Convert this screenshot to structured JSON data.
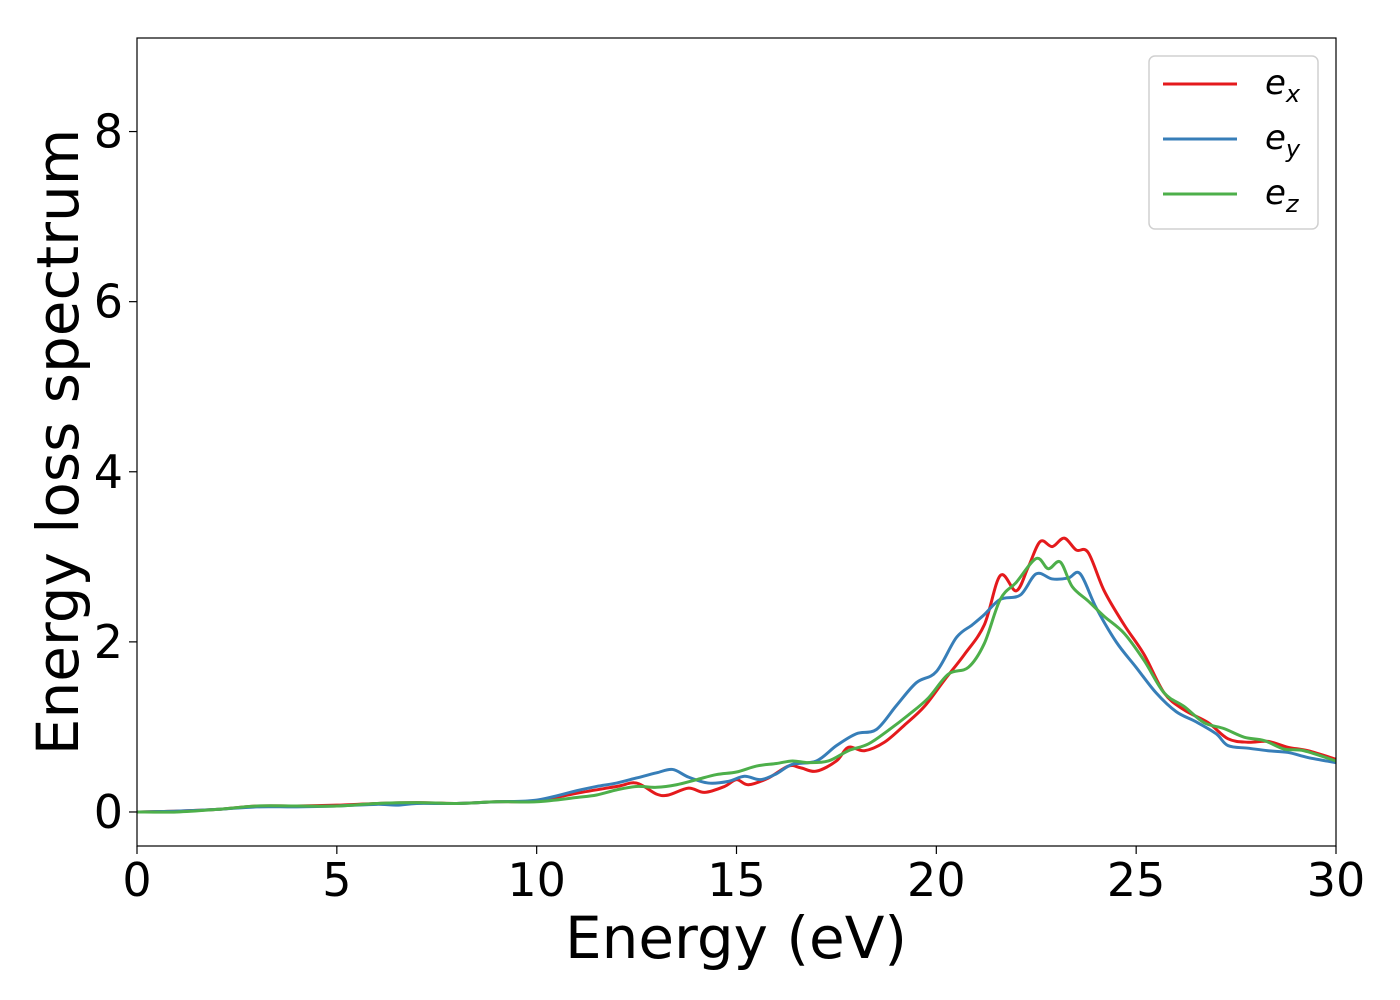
{
  "chart_data": {
    "type": "line",
    "title": "",
    "xlabel": "Energy (eV)",
    "ylabel": "Energy loss spectrum",
    "xlim": [
      0,
      30
    ],
    "ylim": [
      -0.4,
      9.1
    ],
    "xticks": [
      "0",
      "5",
      "10",
      "15",
      "20",
      "25",
      "30"
    ],
    "yticks": [
      "0",
      "2",
      "4",
      "6",
      "8"
    ],
    "grid": false,
    "legend_position": "top-right",
    "series": [
      {
        "name": "e",
        "subscript": "x",
        "color": "#e41a1c",
        "points": [
          [
            0,
            0
          ],
          [
            1,
            0.01
          ],
          [
            2,
            0.03
          ],
          [
            3,
            0.07
          ],
          [
            4,
            0.07
          ],
          [
            5,
            0.08
          ],
          [
            6,
            0.1
          ],
          [
            7,
            0.11
          ],
          [
            8,
            0.1
          ],
          [
            9,
            0.12
          ],
          [
            10,
            0.13
          ],
          [
            11,
            0.22
          ],
          [
            12,
            0.3
          ],
          [
            12.5,
            0.34
          ],
          [
            13,
            0.21
          ],
          [
            13.3,
            0.2
          ],
          [
            13.8,
            0.28
          ],
          [
            14.2,
            0.23
          ],
          [
            14.7,
            0.3
          ],
          [
            15,
            0.38
          ],
          [
            15.3,
            0.32
          ],
          [
            15.8,
            0.4
          ],
          [
            16.3,
            0.54
          ],
          [
            16.6,
            0.52
          ],
          [
            17,
            0.48
          ],
          [
            17.5,
            0.6
          ],
          [
            17.8,
            0.76
          ],
          [
            18.2,
            0.72
          ],
          [
            18.7,
            0.82
          ],
          [
            19.2,
            1.02
          ],
          [
            19.7,
            1.24
          ],
          [
            20.2,
            1.55
          ],
          [
            20.7,
            1.85
          ],
          [
            21.2,
            2.2
          ],
          [
            21.6,
            2.78
          ],
          [
            22,
            2.6
          ],
          [
            22.3,
            2.88
          ],
          [
            22.6,
            3.18
          ],
          [
            22.9,
            3.12
          ],
          [
            23.2,
            3.22
          ],
          [
            23.5,
            3.08
          ],
          [
            23.8,
            3.05
          ],
          [
            24.2,
            2.6
          ],
          [
            24.7,
            2.2
          ],
          [
            25.2,
            1.85
          ],
          [
            25.7,
            1.4
          ],
          [
            26.2,
            1.2
          ],
          [
            26.8,
            1.05
          ],
          [
            27.3,
            0.86
          ],
          [
            27.8,
            0.82
          ],
          [
            28.3,
            0.83
          ],
          [
            28.8,
            0.76
          ],
          [
            29.3,
            0.72
          ],
          [
            30,
            0.62
          ]
        ]
      },
      {
        "name": "e",
        "subscript": "y",
        "color": "#377eb8",
        "points": [
          [
            0,
            0
          ],
          [
            1,
            0.01
          ],
          [
            2,
            0.03
          ],
          [
            3,
            0.06
          ],
          [
            4,
            0.06
          ],
          [
            5,
            0.07
          ],
          [
            6,
            0.09
          ],
          [
            6.5,
            0.08
          ],
          [
            7,
            0.1
          ],
          [
            8,
            0.1
          ],
          [
            9,
            0.12
          ],
          [
            10,
            0.14
          ],
          [
            11,
            0.25
          ],
          [
            11.5,
            0.3
          ],
          [
            12,
            0.34
          ],
          [
            12.5,
            0.4
          ],
          [
            13,
            0.46
          ],
          [
            13.4,
            0.5
          ],
          [
            13.8,
            0.41
          ],
          [
            14.3,
            0.34
          ],
          [
            14.8,
            0.36
          ],
          [
            15.2,
            0.42
          ],
          [
            15.6,
            0.38
          ],
          [
            16,
            0.45
          ],
          [
            16.4,
            0.56
          ],
          [
            17,
            0.6
          ],
          [
            17.5,
            0.78
          ],
          [
            18,
            0.92
          ],
          [
            18.5,
            0.97
          ],
          [
            19,
            1.25
          ],
          [
            19.5,
            1.52
          ],
          [
            20,
            1.65
          ],
          [
            20.5,
            2.05
          ],
          [
            20.9,
            2.2
          ],
          [
            21.2,
            2.32
          ],
          [
            21.6,
            2.5
          ],
          [
            22.1,
            2.55
          ],
          [
            22.5,
            2.8
          ],
          [
            22.9,
            2.74
          ],
          [
            23.3,
            2.75
          ],
          [
            23.6,
            2.8
          ],
          [
            24,
            2.4
          ],
          [
            24.5,
            2.0
          ],
          [
            25,
            1.7
          ],
          [
            25.5,
            1.4
          ],
          [
            26,
            1.18
          ],
          [
            26.5,
            1.06
          ],
          [
            27,
            0.92
          ],
          [
            27.3,
            0.78
          ],
          [
            27.8,
            0.75
          ],
          [
            28.3,
            0.72
          ],
          [
            28.8,
            0.7
          ],
          [
            29.3,
            0.64
          ],
          [
            30,
            0.58
          ]
        ]
      },
      {
        "name": "e",
        "subscript": "z",
        "color": "#4daf4a",
        "points": [
          [
            0,
            0
          ],
          [
            1,
            0
          ],
          [
            2,
            0.03
          ],
          [
            3,
            0.07
          ],
          [
            4,
            0.07
          ],
          [
            5,
            0.07
          ],
          [
            6,
            0.1
          ],
          [
            7,
            0.11
          ],
          [
            8,
            0.1
          ],
          [
            9,
            0.12
          ],
          [
            10,
            0.12
          ],
          [
            11,
            0.17
          ],
          [
            11.5,
            0.2
          ],
          [
            12,
            0.26
          ],
          [
            12.5,
            0.3
          ],
          [
            13,
            0.29
          ],
          [
            13.5,
            0.32
          ],
          [
            14,
            0.38
          ],
          [
            14.5,
            0.44
          ],
          [
            15,
            0.47
          ],
          [
            15.5,
            0.54
          ],
          [
            16,
            0.57
          ],
          [
            16.4,
            0.6
          ],
          [
            16.8,
            0.58
          ],
          [
            17.3,
            0.6
          ],
          [
            17.8,
            0.72
          ],
          [
            18.3,
            0.8
          ],
          [
            18.8,
            0.96
          ],
          [
            19.3,
            1.14
          ],
          [
            19.8,
            1.34
          ],
          [
            20.3,
            1.62
          ],
          [
            20.8,
            1.7
          ],
          [
            21.2,
            1.98
          ],
          [
            21.6,
            2.5
          ],
          [
            22,
            2.7
          ],
          [
            22.5,
            2.98
          ],
          [
            22.8,
            2.86
          ],
          [
            23.1,
            2.94
          ],
          [
            23.4,
            2.65
          ],
          [
            23.8,
            2.48
          ],
          [
            24.2,
            2.3
          ],
          [
            24.7,
            2.1
          ],
          [
            25.2,
            1.78
          ],
          [
            25.7,
            1.4
          ],
          [
            26.2,
            1.24
          ],
          [
            26.7,
            1.05
          ],
          [
            27.2,
            0.98
          ],
          [
            27.7,
            0.88
          ],
          [
            28.2,
            0.84
          ],
          [
            28.7,
            0.74
          ],
          [
            29.2,
            0.72
          ],
          [
            30,
            0.6
          ]
        ]
      }
    ]
  }
}
